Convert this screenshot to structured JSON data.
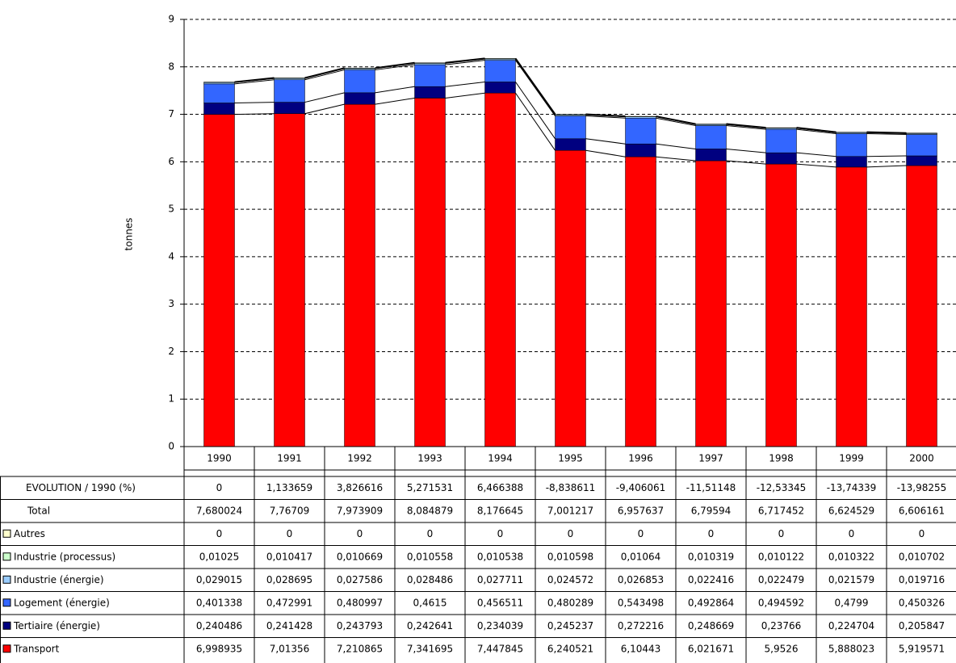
{
  "chart_data": {
    "type": "bar",
    "stacked": true,
    "y_label": "tonnes",
    "categories": [
      "1990",
      "1991",
      "1992",
      "1993",
      "1994",
      "1995",
      "1996",
      "1997",
      "1998",
      "1999",
      "2000"
    ],
    "ylim": [
      0,
      9
    ],
    "yticks": [
      0,
      1,
      2,
      3,
      4,
      5,
      6,
      7,
      8,
      9
    ],
    "grid": true,
    "table_rows": [
      {
        "label": "EVOLUTION / 1990 (%)",
        "cells": [
          "0",
          "1,133659",
          "3,826616",
          "5,271531",
          "6,466388",
          "-8,838611",
          "-9,406061",
          "-11,51148",
          "-12,53345",
          "-13,74339",
          "-13,98255"
        ]
      },
      {
        "label": "Total",
        "cells": [
          "7,680024",
          "7,76709",
          "7,973909",
          "8,084879",
          "8,176645",
          "7,001217",
          "6,957637",
          "6,79594",
          "6,717452",
          "6,624529",
          "6,606161"
        ]
      }
    ],
    "series": [
      {
        "name": "Autres",
        "color": "#ffffcc",
        "values": [
          0,
          0,
          0,
          0,
          0,
          0,
          0,
          0,
          0,
          0,
          0
        ],
        "value_labels": [
          "0",
          "0",
          "0",
          "0",
          "0",
          "0",
          "0",
          "0",
          "0",
          "0",
          "0"
        ]
      },
      {
        "name": "Industrie (processus)",
        "color": "#ccffcc",
        "values": [
          0.01025,
          0.010417,
          0.010669,
          0.010558,
          0.010538,
          0.010598,
          0.01064,
          0.010319,
          0.010122,
          0.010322,
          0.010702
        ],
        "value_labels": [
          "0,01025",
          "0,010417",
          "0,010669",
          "0,010558",
          "0,010538",
          "0,010598",
          "0,01064",
          "0,010319",
          "0,010122",
          "0,010322",
          "0,010702"
        ]
      },
      {
        "name": "Industrie (énergie)",
        "color": "#99ccff",
        "values": [
          0.029015,
          0.028695,
          0.027586,
          0.028486,
          0.027711,
          0.024572,
          0.026853,
          0.022416,
          0.022479,
          0.021579,
          0.019716
        ],
        "value_labels": [
          "0,029015",
          "0,028695",
          "0,027586",
          "0,028486",
          "0,027711",
          "0,024572",
          "0,026853",
          "0,022416",
          "0,022479",
          "0,021579",
          "0,019716"
        ]
      },
      {
        "name": "Logement (énergie)",
        "color": "#3366ff",
        "values": [
          0.401338,
          0.472991,
          0.480997,
          0.4615,
          0.456511,
          0.480289,
          0.543498,
          0.492864,
          0.494592,
          0.4799,
          0.450326
        ],
        "value_labels": [
          "0,401338",
          "0,472991",
          "0,480997",
          "0,4615",
          "0,456511",
          "0,480289",
          "0,543498",
          "0,492864",
          "0,494592",
          "0,4799",
          "0,450326"
        ]
      },
      {
        "name": "Tertiaire (énergie)",
        "color": "#000080",
        "values": [
          0.240486,
          0.241428,
          0.243793,
          0.242641,
          0.234039,
          0.245237,
          0.272216,
          0.248669,
          0.23766,
          0.224704,
          0.205847
        ],
        "value_labels": [
          "0,240486",
          "0,241428",
          "0,243793",
          "0,242641",
          "0,234039",
          "0,245237",
          "0,272216",
          "0,248669",
          "0,23766",
          "0,224704",
          "0,205847"
        ]
      },
      {
        "name": "Transport",
        "color": "#ff0000",
        "values": [
          6.998935,
          7.01356,
          7.210865,
          7.341695,
          7.447845,
          6.240521,
          6.10443,
          6.021671,
          5.9526,
          5.888023,
          5.919571
        ],
        "value_labels": [
          "6,998935",
          "7,01356",
          "7,210865",
          "7,341695",
          "7,447845",
          "6,240521",
          "6,10443",
          "6,021671",
          "5,9526",
          "5,888023",
          "5,919571"
        ]
      }
    ]
  }
}
